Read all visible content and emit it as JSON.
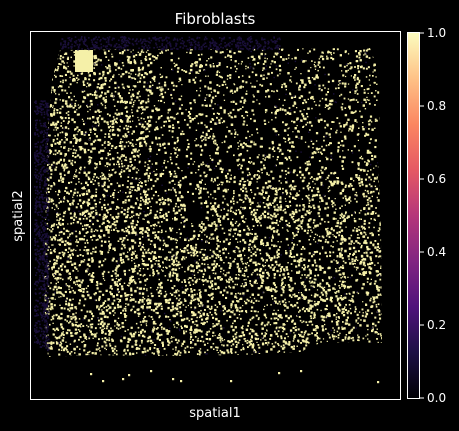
{
  "chart_data": {
    "type": "heatmap",
    "title": "Fibroblasts",
    "xlabel": "spatial1",
    "ylabel": "spatial2",
    "colorbar": {
      "colormap": "magma",
      "range": [
        0.0,
        1.0
      ],
      "ticks": [
        0.0,
        0.2,
        0.4,
        0.6,
        0.8,
        1.0
      ],
      "tick_labels": [
        "0.0",
        "0.2",
        "0.4",
        "0.6",
        "0.8",
        "1.0"
      ],
      "stops": [
        "#000004",
        "#1c1044",
        "#4f127b",
        "#812581",
        "#b5367a",
        "#e55964",
        "#fb8761",
        "#fec287",
        "#fcfdbf"
      ]
    },
    "background_color": "#000000",
    "high_value_color": "#f5f0a8",
    "low_value_color": "#1a0f3a",
    "grid": false,
    "legend": "colorbar-right"
  }
}
